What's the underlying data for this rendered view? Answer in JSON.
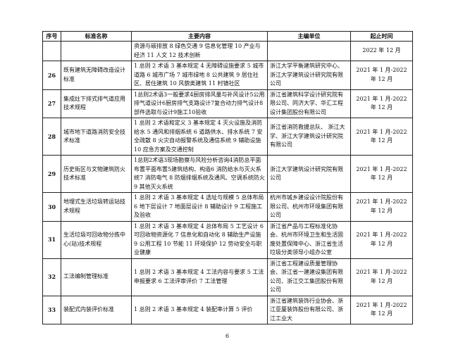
{
  "headers": {
    "seq": "序号",
    "name": "标准名称",
    "content": "主要内容",
    "org": "主编单位",
    "time": "起止时间"
  },
  "rows": [
    {
      "seq": "",
      "name": "",
      "content": "资源与碳排放 8 绿色交通 9 信息化管理 10 产业与经济 11 人文 12 技术创新",
      "org": "",
      "time": "2022 年 12 月"
    },
    {
      "seq": "26",
      "name": "既有建筑无障碍改造设计标准",
      "content": "1 总则 2 术语 3 基本规定 4 无障碍设施要求 5 城市道路 6 城市广场 7 城市绿地 8 公共建筑 9 居住社区、居住建筑 10 风貌类建筑 11 村镇社区",
      "org": "浙江大学平衡建筑研究中心、浙江大学建筑设计研究院有限公司",
      "time": "2021 年 1 月-2022 年 12 月"
    },
    {
      "seq": "27",
      "name": "集成灶下排式排气道应用技术规程",
      "content": "1总则2术语3一般要求4厨房排风量与补风设计5公用排气道设计6厨房排气支路设计7复合动力排气设计8部件选取与设计9施工10验收",
      "org": "浙江省建筑科学设计研究院有限公司、同济大学、华汇工程设计集团股份有限公司",
      "time": "2021 年 1 月-2022 年 12 月"
    },
    {
      "seq": "28",
      "name": "城市地下道路消防安全技术标准",
      "content": "1 总则 2 术语和定义 3 基本规定 4 灭火设施及消防给水 5 通风和排烟系统 6 道路供水、排水系统 7 安全疏散 8 火灾自动报警系统及通信系统 9 辅助设施 10 应急方案及交通控制",
      "org": "浙江省消防救援总队、 浙江大学、浙江大学建筑设计研究院有限公司",
      "time": "2021 年 1 月-2022 年 12 月"
    },
    {
      "seq": "29",
      "name": "历史街区与文物建筑防火技术标准",
      "content": "1总则2术语3现场勘察与风险分析咨询4消防总平面布置平面布置5建筑结构、构造6 消防给水与灭火系统7 消防电气 8 防烟排烟系统及通风、空调系统防火9 其他灭火系统",
      "org": "浙江大学建筑设计研究院有限公司",
      "time": "2021 年 1 月-2022 年 12 月"
    },
    {
      "seq": "30",
      "name": "地埋式生活垃圾转运站技术规程",
      "content": "1 总则 2 术语 3 基本规定 4 选址与规模 5 总体布局 6 地下层设计 7 地面层设计 8 辅助设计 9 工程施工及验收",
      "org": "杭州市城乡建设设计院股份有限公司、杭州市环境集团有限公司",
      "time": "2021 年 1 月-2022 年 12 月"
    },
    {
      "seq": "31",
      "name": "生活垃圾可回收物分拣中心(站)技术规程",
      "content": "1 总则 2 术语 3 基本规定 4 总体布局 5 工艺设计 6 可回收物资源化 7 信息化和自动化 8 辅助生产设施 9 公用工程 10 节能 11 环境保护 12 劳动安全与职业健康",
      "org": "浙江省产品与工程标准化协会、杭州市环境卫生和生活固废处置保障中心、浙江省生活垃圾分类领导小组办公室",
      "time": "2021 年 1 月-2022 年 12 月"
    },
    {
      "seq": "32",
      "name": "工法编制管理标准",
      "content": "1 总则 2 术语 3 基本规定 4 工法内容与要求 5 工法申报要求 6 工法评审评价 7 工法管理",
      "org": "浙江省工程建设质量管理协会、浙江省一建建设集团有限公司、浙江交工集团股份有限公司",
      "time": "2021 年 1 月-2022 年 12 月"
    },
    {
      "seq": "33",
      "name": "装配式内装评价标准",
      "content": "1 总则 2 术语 3 基本规定 4 装配率计算 5 评价",
      "org": "浙江省建筑装饰行业协会、浙江亚厦装饰股份有限公司、浙江工业大",
      "time": "2021 年 1 月-2022 年 12 月"
    }
  ],
  "page_number": "6"
}
